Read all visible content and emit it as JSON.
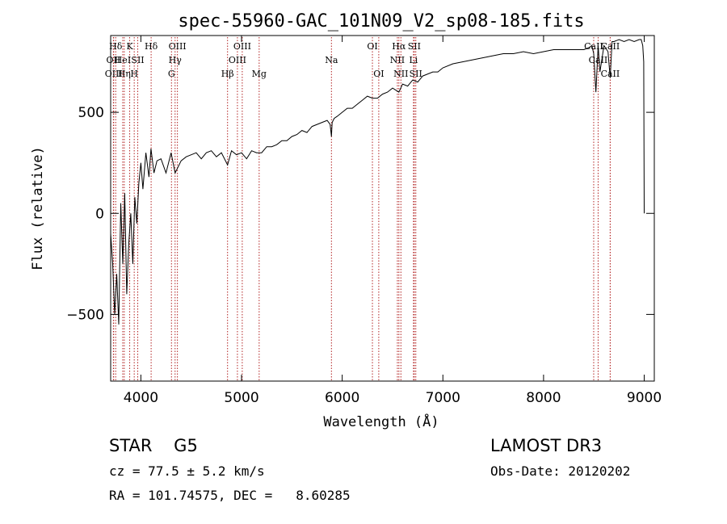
{
  "chart_data": {
    "type": "line",
    "title": "spec-55960-GAC_101N09_V2_sp08-185.fits",
    "xlabel": "Wavelength (Å)",
    "ylabel": "Flux (relative)",
    "xlim": [
      3700,
      9100
    ],
    "ylim": [
      -830,
      880
    ],
    "xticks": [
      4000,
      5000,
      6000,
      7000,
      8000,
      9000
    ],
    "yticks": [
      -500,
      0,
      500
    ],
    "line_color": "#000000",
    "marker_color": "#b22222",
    "series": [
      {
        "name": "spectrum",
        "x": [
          3700,
          3720,
          3740,
          3760,
          3780,
          3800,
          3820,
          3840,
          3860,
          3880,
          3900,
          3920,
          3940,
          3960,
          3980,
          4000,
          4020,
          4050,
          4080,
          4100,
          4130,
          4160,
          4200,
          4250,
          4300,
          4340,
          4400,
          4450,
          4500,
          4550,
          4600,
          4650,
          4700,
          4750,
          4800,
          4861,
          4900,
          4950,
          5000,
          5050,
          5100,
          5150,
          5200,
          5250,
          5300,
          5350,
          5400,
          5450,
          5500,
          5550,
          5600,
          5650,
          5700,
          5750,
          5800,
          5850,
          5880,
          5893,
          5900,
          5920,
          5950,
          6000,
          6050,
          6100,
          6150,
          6200,
          6250,
          6300,
          6350,
          6400,
          6450,
          6500,
          6563,
          6600,
          6650,
          6700,
          6750,
          6800,
          6850,
          6900,
          6950,
          7000,
          7100,
          7200,
          7300,
          7400,
          7500,
          7600,
          7700,
          7800,
          7900,
          8000,
          8100,
          8200,
          8300,
          8400,
          8450,
          8480,
          8498,
          8520,
          8542,
          8560,
          8600,
          8640,
          8662,
          8680,
          8700,
          8750,
          8800,
          8850,
          8900,
          8950,
          8970,
          8985,
          8995,
          9000
        ],
        "y": [
          -100,
          -250,
          -500,
          -300,
          -550,
          50,
          -250,
          100,
          -400,
          -150,
          0,
          -250,
          80,
          -50,
          150,
          250,
          120,
          300,
          180,
          320,
          200,
          260,
          270,
          200,
          300,
          200,
          260,
          280,
          290,
          300,
          270,
          300,
          310,
          280,
          300,
          240,
          310,
          290,
          300,
          270,
          310,
          300,
          300,
          330,
          330,
          340,
          360,
          360,
          380,
          390,
          410,
          400,
          430,
          440,
          450,
          460,
          440,
          380,
          450,
          470,
          480,
          500,
          520,
          520,
          540,
          560,
          580,
          570,
          570,
          590,
          600,
          620,
          600,
          640,
          630,
          660,
          650,
          680,
          690,
          700,
          700,
          720,
          740,
          750,
          760,
          770,
          780,
          790,
          790,
          800,
          790,
          800,
          810,
          810,
          810,
          810,
          820,
          830,
          790,
          600,
          830,
          700,
          830,
          800,
          670,
          850,
          850,
          860,
          850,
          860,
          850,
          860,
          860,
          830,
          750,
          0
        ]
      }
    ],
    "line_markers": [
      {
        "name": "Hδ",
        "wavelength": 3750,
        "row": 1
      },
      {
        "name": "OII",
        "wavelength": 3727,
        "row": 2
      },
      {
        "name": "OIII",
        "wavelength": 3730,
        "row": 3
      },
      {
        "name": "HeI",
        "wavelength": 3820,
        "row": 2
      },
      {
        "name": "Hη",
        "wavelength": 3835,
        "row": 3
      },
      {
        "name": "K",
        "wavelength": 3889,
        "row": 1
      },
      {
        "name": "H",
        "wavelength": 3934,
        "row": 3
      },
      {
        "name": "SII",
        "wavelength": 3969,
        "row": 2
      },
      {
        "name": "Hδ",
        "wavelength": 4102,
        "row": 1
      },
      {
        "name": "OIII",
        "wavelength": 4363,
        "row": 1
      },
      {
        "name": "Hγ",
        "wavelength": 4340,
        "row": 2
      },
      {
        "name": "G",
        "wavelength": 4304,
        "row": 3
      },
      {
        "name": "Hβ",
        "wavelength": 4861,
        "row": 3
      },
      {
        "name": "OIII",
        "wavelength": 5007,
        "row": 1
      },
      {
        "name": "OIII",
        "wavelength": 4959,
        "row": 2
      },
      {
        "name": "Mg",
        "wavelength": 5175,
        "row": 3
      },
      {
        "name": "Na",
        "wavelength": 5893,
        "row": 2
      },
      {
        "name": "OI",
        "wavelength": 6300,
        "row": 1
      },
      {
        "name": "OI",
        "wavelength": 6363,
        "row": 3
      },
      {
        "name": "Hα",
        "wavelength": 6563,
        "row": 1
      },
      {
        "name": "NII",
        "wavelength": 6548,
        "row": 2
      },
      {
        "name": "NII",
        "wavelength": 6583,
        "row": 3
      },
      {
        "name": "SII",
        "wavelength": 6716,
        "row": 1
      },
      {
        "name": "Li",
        "wavelength": 6708,
        "row": 2
      },
      {
        "name": "SII",
        "wavelength": 6731,
        "row": 3
      },
      {
        "name": "CaII",
        "wavelength": 8498,
        "row": 1
      },
      {
        "name": "CaII",
        "wavelength": 8542,
        "row": 2
      },
      {
        "name": "CaII",
        "wavelength": 8662,
        "row": 3
      },
      {
        "name": "CaII",
        "wavelength": 8662,
        "row": 1
      }
    ]
  },
  "info": {
    "class_line": "STAR    G5",
    "survey": "LAMOST DR3",
    "cz": "cz = 77.5 ± 5.2 km/s",
    "obs_date": "Obs-Date: 20120202",
    "radec": "RA = 101.74575, DEC =   8.60285"
  }
}
